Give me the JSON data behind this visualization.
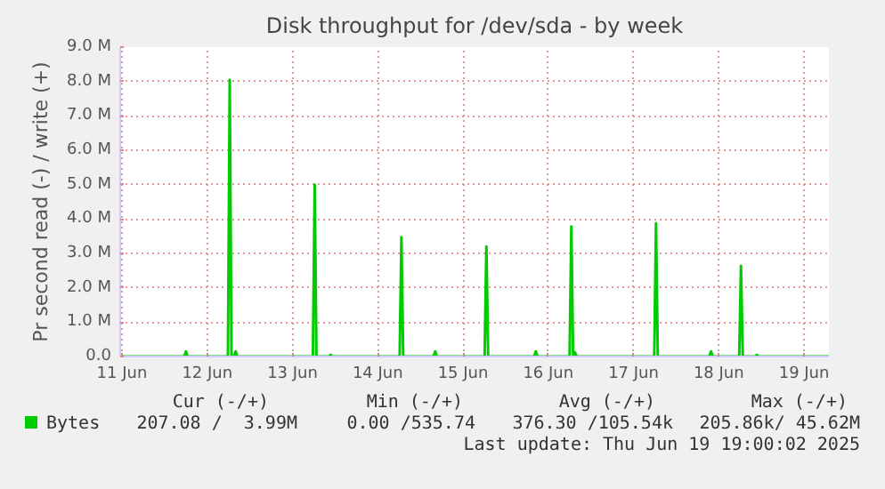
{
  "chart_data": {
    "type": "line",
    "title": "Disk throughput for /dev/sda - by week",
    "ylabel": "Pr second read (-) / write (+)",
    "x": [
      "2025-06-11T12:00",
      "2025-06-12T05:30",
      "2025-06-12T06:00",
      "2025-06-12T06:30",
      "2025-06-12T17:50",
      "2025-06-12T18:20",
      "2025-06-12T18:50",
      "2025-06-12T19:30",
      "2025-06-12T20:00",
      "2025-06-12T20:30",
      "2025-06-13T17:45",
      "2025-06-13T18:15",
      "2025-06-13T18:45",
      "2025-06-13T22:15",
      "2025-06-13T22:45",
      "2025-06-13T23:15",
      "2025-06-14T18:10",
      "2025-06-14T18:40",
      "2025-06-14T19:10",
      "2025-06-15T03:40",
      "2025-06-15T04:10",
      "2025-06-15T04:40",
      "2025-06-15T18:05",
      "2025-06-15T18:35",
      "2025-06-15T19:05",
      "2025-06-16T08:00",
      "2025-06-16T08:30",
      "2025-06-16T09:00",
      "2025-06-16T18:00",
      "2025-06-16T18:30",
      "2025-06-16T19:00",
      "2025-06-16T19:30",
      "2025-06-16T20:00",
      "2025-06-17T17:50",
      "2025-06-17T18:20",
      "2025-06-17T18:50",
      "2025-06-18T09:20",
      "2025-06-18T09:50",
      "2025-06-18T10:20",
      "2025-06-18T17:45",
      "2025-06-18T18:15",
      "2025-06-18T18:45",
      "2025-06-18T22:15",
      "2025-06-18T22:45",
      "2025-06-18T23:15",
      "2025-06-19T19:00"
    ],
    "series": [
      {
        "name": "Bytes",
        "color": "#00cc00",
        "values": [
          0,
          0,
          150000,
          0,
          0,
          8050000,
          0,
          0,
          150000,
          0,
          0,
          5000000,
          0,
          0,
          50000,
          0,
          0,
          3470000,
          0,
          0,
          150000,
          0,
          0,
          3200000,
          0,
          0,
          150000,
          0,
          0,
          3780000,
          0,
          120000,
          0,
          0,
          3880000,
          0,
          0,
          150000,
          0,
          0,
          2640000,
          0,
          0,
          50000,
          0,
          0
        ]
      }
    ],
    "xlim": [
      "2025-06-11T11:30",
      "2025-06-19T19:00"
    ],
    "xticks": [
      {
        "value": "2025-06-11T12:00",
        "label": "11 Jun"
      },
      {
        "value": "2025-06-12T12:00",
        "label": "12 Jun"
      },
      {
        "value": "2025-06-13T12:00",
        "label": "13 Jun"
      },
      {
        "value": "2025-06-14T12:00",
        "label": "14 Jun"
      },
      {
        "value": "2025-06-15T12:00",
        "label": "15 Jun"
      },
      {
        "value": "2025-06-16T12:00",
        "label": "16 Jun"
      },
      {
        "value": "2025-06-17T12:00",
        "label": "17 Jun"
      },
      {
        "value": "2025-06-18T12:00",
        "label": "18 Jun"
      },
      {
        "value": "2025-06-19T12:00",
        "label": "19 Jun"
      }
    ],
    "ylim": [
      0,
      9000000
    ],
    "yticks": [
      {
        "value": 0,
        "label": "0.0"
      },
      {
        "value": 1000000,
        "label": "1.0 M"
      },
      {
        "value": 2000000,
        "label": "2.0 M"
      },
      {
        "value": 3000000,
        "label": "3.0 M"
      },
      {
        "value": 4000000,
        "label": "4.0 M"
      },
      {
        "value": 5000000,
        "label": "5.0 M"
      },
      {
        "value": 6000000,
        "label": "6.0 M"
      },
      {
        "value": 7000000,
        "label": "7.0 M"
      },
      {
        "value": 8000000,
        "label": "8.0 M"
      },
      {
        "value": 9000000,
        "label": "9.0 M"
      }
    ],
    "grid": true,
    "legend": "bottom left",
    "marker": "none",
    "line_style": "solid",
    "annotations": [
      "Cur (-/+)",
      "Min (-/+)",
      "Avg (-/+)",
      "Max (-/+)",
      "207.08 /  3.99M",
      "0.00 /535.74",
      "376.30 /105.54k",
      "205.86k/ 45.62M",
      "Last update: Thu Jun 19 19:00:02 2025"
    ]
  }
}
